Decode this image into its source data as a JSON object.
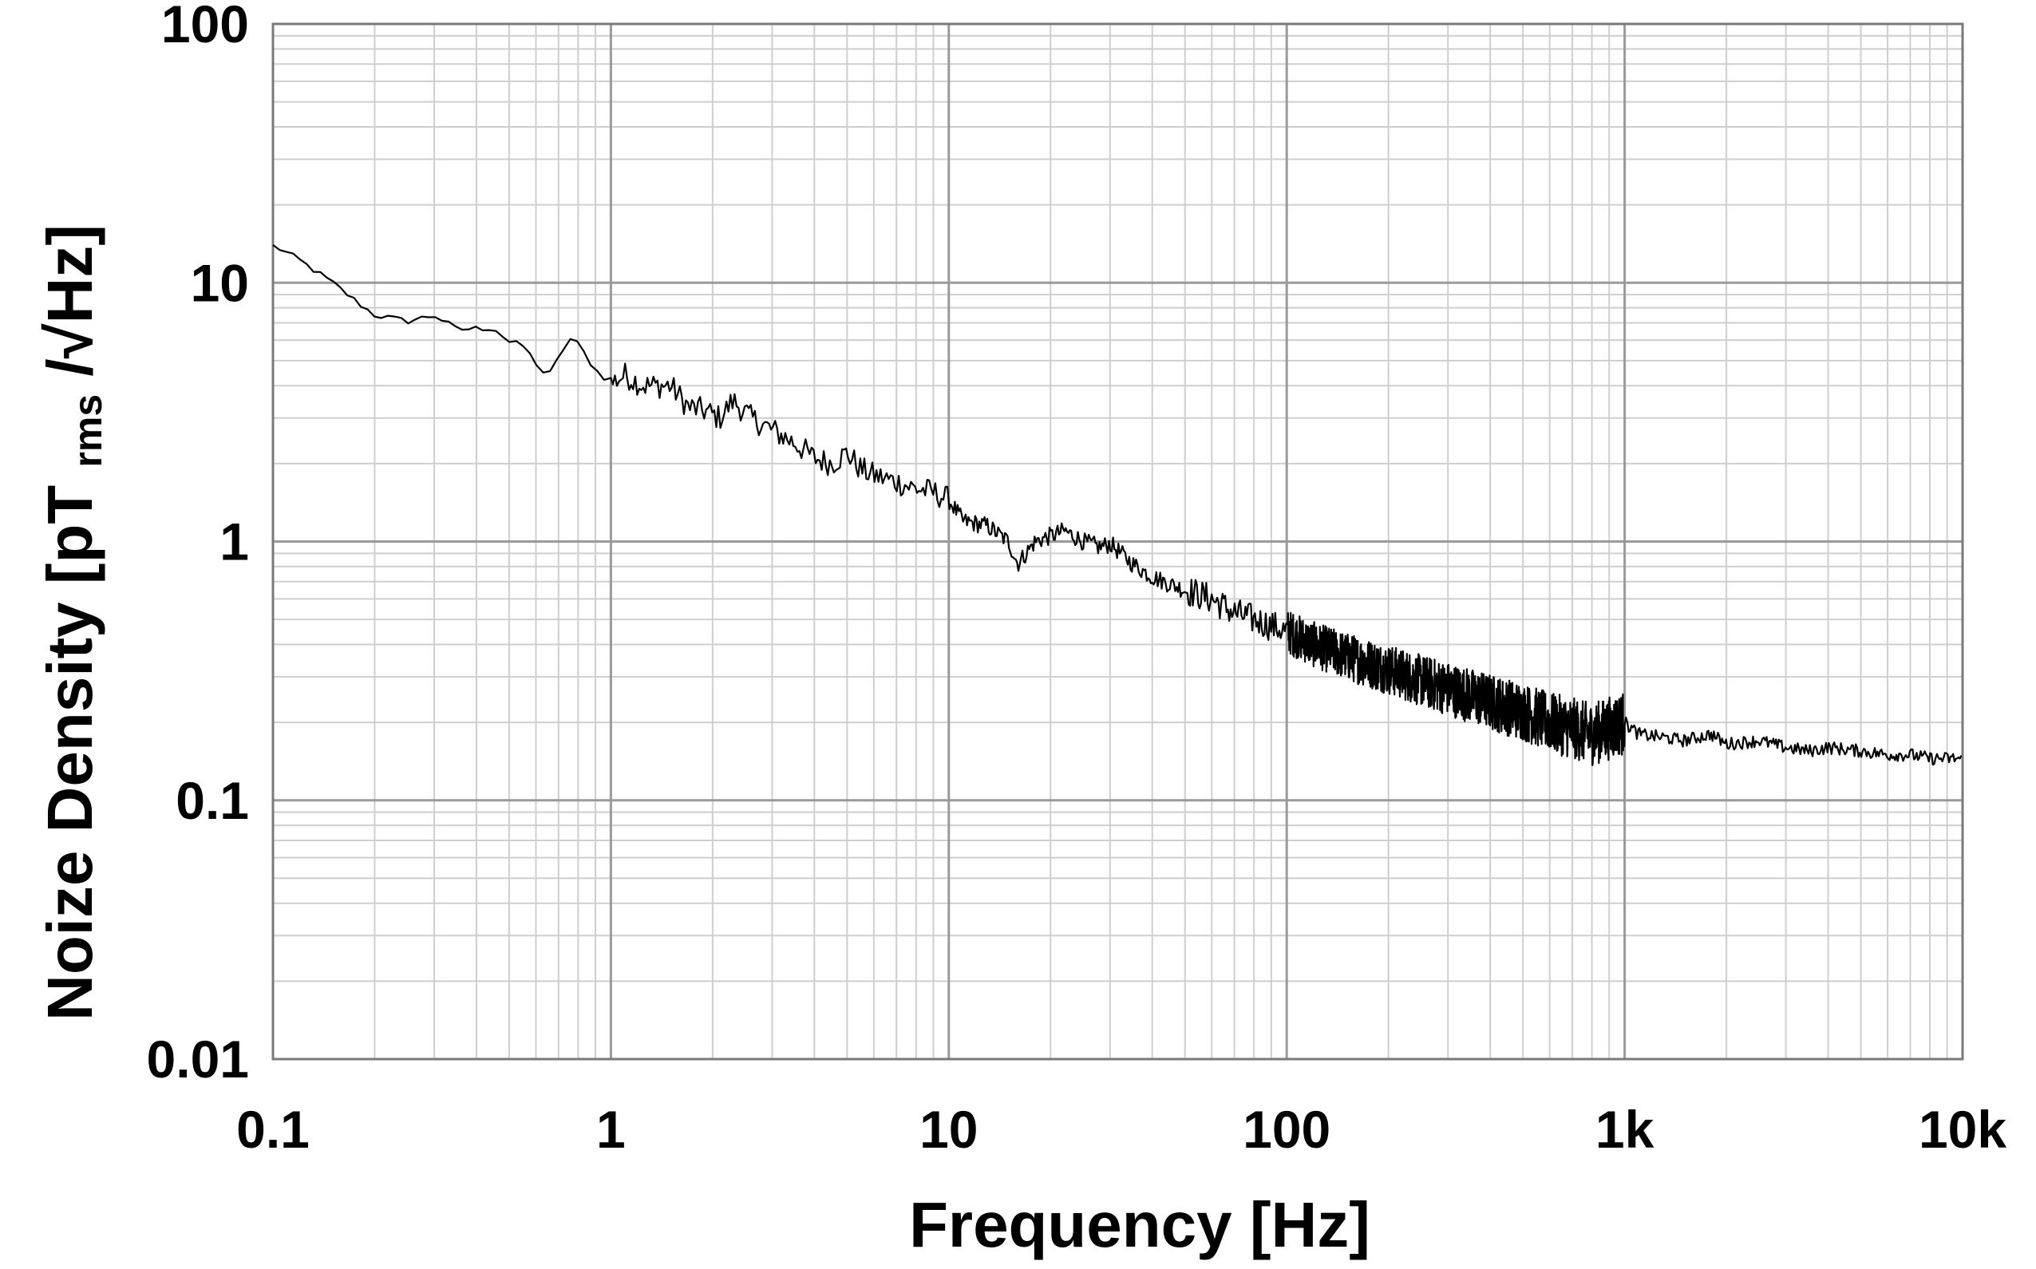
{
  "chart_data": {
    "type": "line",
    "title": "",
    "xlabel": "Frequency [Hz]",
    "ylabel": {
      "main": "Noize Density [pT",
      "sub": "rms",
      "tail": "/√Hz]"
    },
    "xscale": "log",
    "yscale": "log",
    "xlim": [
      0.1,
      10000
    ],
    "ylim": [
      0.01,
      100
    ],
    "grid": true,
    "legend": "none",
    "x_ticks": [
      {
        "value": 0.1,
        "label": "0.1"
      },
      {
        "value": 1,
        "label": "1"
      },
      {
        "value": 10,
        "label": "10"
      },
      {
        "value": 100,
        "label": "100"
      },
      {
        "value": 1000,
        "label": "1k"
      },
      {
        "value": 10000,
        "label": "10k"
      }
    ],
    "y_ticks": [
      {
        "value": 0.01,
        "label": "0.01"
      },
      {
        "value": 0.1,
        "label": "0.1"
      },
      {
        "value": 1,
        "label": "1"
      },
      {
        "value": 10,
        "label": "10"
      },
      {
        "value": 100,
        "label": "100"
      }
    ],
    "series": [
      {
        "color": "#000000",
        "x": [
          0.1,
          0.12,
          0.15,
          0.18,
          0.2,
          0.25,
          0.3,
          0.35,
          0.45,
          0.5,
          0.55,
          0.6,
          0.65,
          0.7,
          0.75,
          0.8,
          0.9,
          1.0,
          1.1,
          1.25,
          1.5,
          1.7,
          1.9,
          2.1,
          2.3,
          2.6,
          3.0,
          3.5,
          4.0,
          4.5,
          5.0,
          5.5,
          6.0,
          7.0,
          8.0,
          9.0,
          10.0,
          11.0,
          13.0,
          15.0,
          16.0,
          18.0,
          20.0,
          22.0,
          25.0,
          28.0,
          30.0,
          35.0,
          40.0,
          50.0,
          60.0,
          70.0,
          80.0,
          100.0,
          120.0,
          150.0,
          200.0,
          250.0,
          300.0,
          400.0,
          500.0,
          600.0,
          700.0,
          800.0,
          900.0,
          1000.0,
          1100.0,
          1300.0,
          1500.0,
          1800.0,
          2000.0,
          2500.0,
          3000.0,
          3500.0,
          4000.0,
          5000.0,
          6000.0,
          7000.0,
          8000.0,
          9000.0,
          10000.0
        ],
        "values": [
          14.0,
          12.2,
          10.0,
          8.3,
          7.5,
          7.1,
          7.5,
          6.6,
          6.7,
          5.9,
          5.7,
          4.9,
          4.3,
          5.1,
          6.1,
          5.8,
          4.6,
          4.1,
          4.4,
          4.0,
          4.0,
          3.3,
          3.2,
          3.0,
          3.5,
          3.0,
          2.7,
          2.4,
          2.1,
          2.0,
          2.2,
          1.9,
          1.8,
          1.7,
          1.6,
          1.55,
          1.45,
          1.2,
          1.15,
          1.0,
          0.82,
          1.0,
          1.05,
          1.1,
          1.0,
          0.95,
          0.98,
          0.82,
          0.73,
          0.65,
          0.6,
          0.53,
          0.5,
          0.45,
          0.4,
          0.36,
          0.32,
          0.29,
          0.27,
          0.24,
          0.22,
          0.2,
          0.19,
          0.18,
          0.19,
          0.2,
          0.18,
          0.175,
          0.17,
          0.18,
          0.165,
          0.17,
          0.16,
          0.155,
          0.16,
          0.155,
          0.15,
          0.15,
          0.145,
          0.145,
          0.145
        ]
      }
    ]
  }
}
